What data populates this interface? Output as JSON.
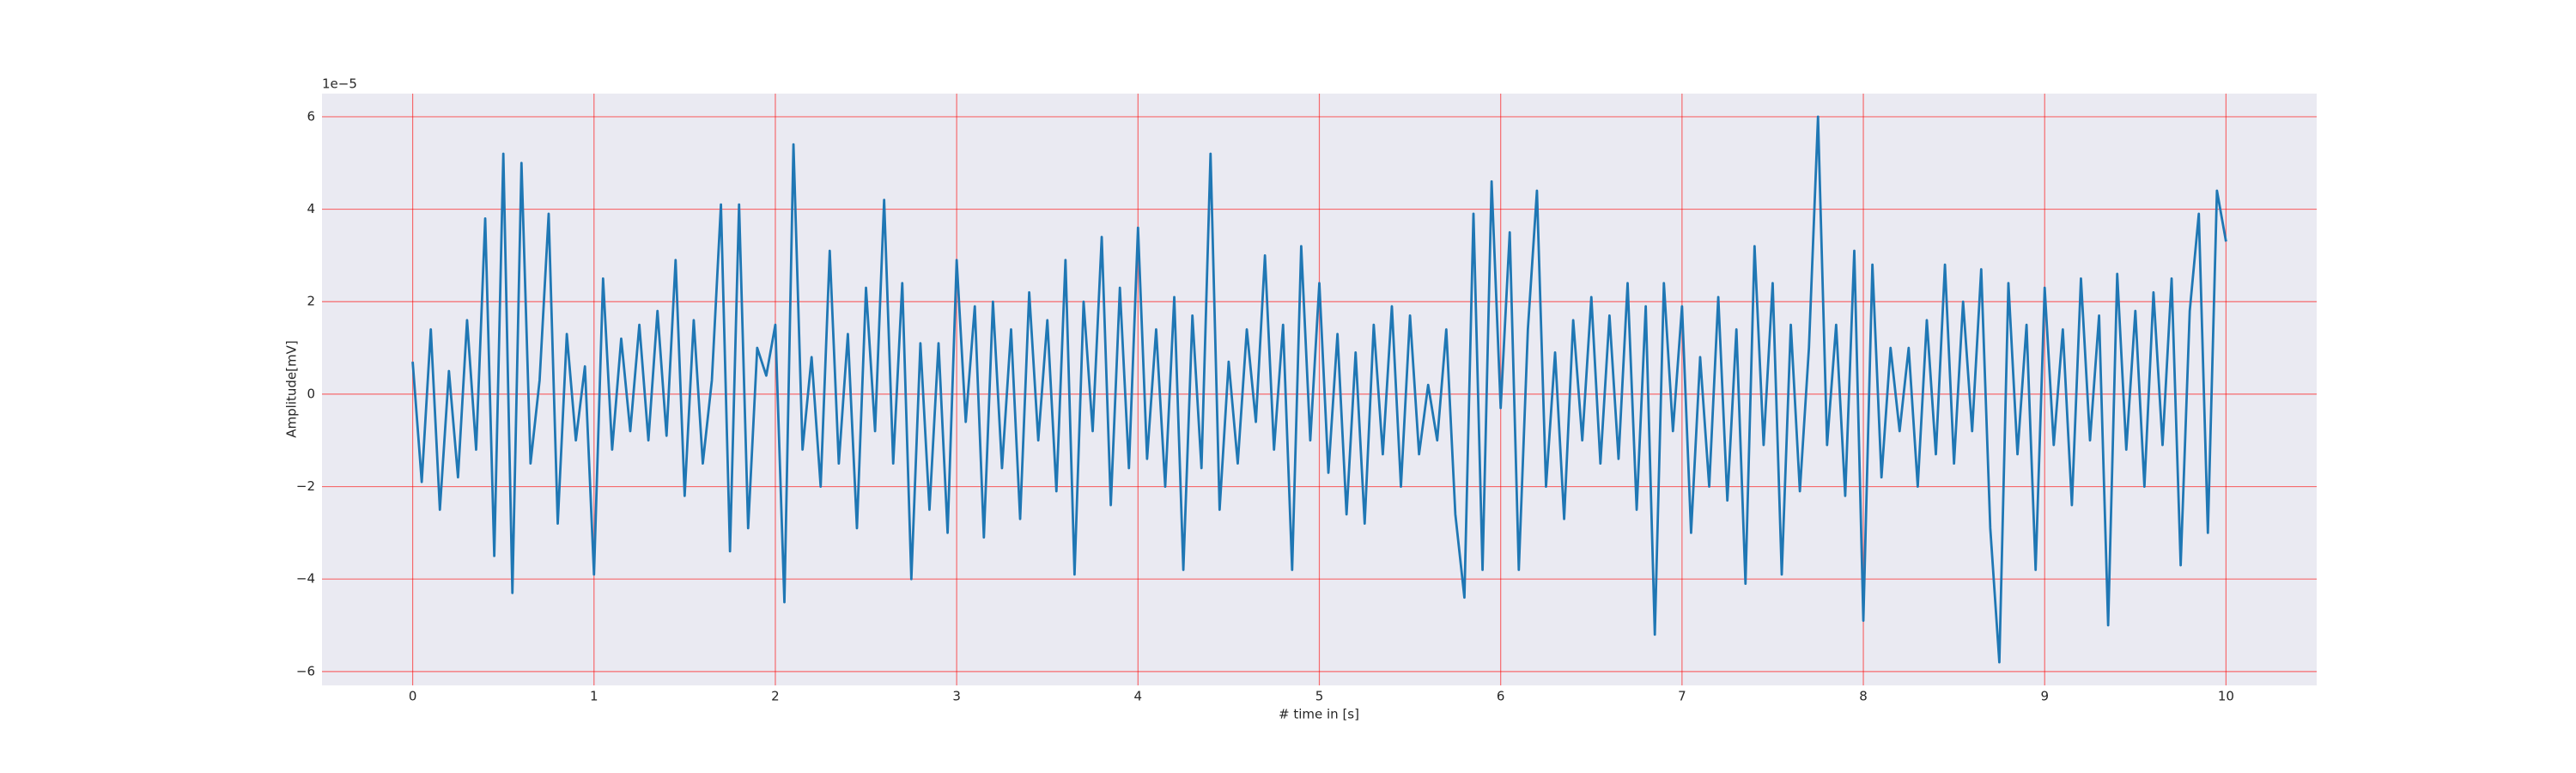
{
  "chart_data": {
    "type": "line",
    "x_label": "# time in [s]",
    "y_label": "Amplitude[mV]",
    "y_offset_label": "1e−5",
    "x": [
      0,
      0.05,
      0.1,
      0.15,
      0.2,
      0.25,
      0.3,
      0.35,
      0.4,
      0.45,
      0.5,
      0.55,
      0.6,
      0.65,
      0.7,
      0.75,
      0.8,
      0.85,
      0.9,
      0.95,
      1,
      1.05,
      1.1,
      1.15,
      1.2,
      1.25,
      1.3,
      1.35,
      1.4,
      1.45,
      1.5,
      1.55,
      1.6,
      1.65,
      1.7,
      1.75,
      1.8,
      1.85,
      1.9,
      1.95,
      2,
      2.05,
      2.1,
      2.15,
      2.2,
      2.25,
      2.3,
      2.35,
      2.4,
      2.45,
      2.5,
      2.55,
      2.6,
      2.65,
      2.7,
      2.75,
      2.8,
      2.85,
      2.9,
      2.95,
      3,
      3.05,
      3.1,
      3.15,
      3.2,
      3.25,
      3.3,
      3.35,
      3.4,
      3.45,
      3.5,
      3.55,
      3.6,
      3.65,
      3.7,
      3.75,
      3.8,
      3.85,
      3.9,
      3.95,
      4,
      4.05,
      4.1,
      4.15,
      4.2,
      4.25,
      4.3,
      4.35,
      4.4,
      4.45,
      4.5,
      4.55,
      4.6,
      4.65,
      4.7,
      4.75,
      4.8,
      4.85,
      4.9,
      4.95,
      5,
      5.05,
      5.1,
      5.15,
      5.2,
      5.25,
      5.3,
      5.35,
      5.4,
      5.45,
      5.5,
      5.55,
      5.6,
      5.65,
      5.7,
      5.75,
      5.8,
      5.85,
      5.9,
      5.95,
      6,
      6.05,
      6.1,
      6.15,
      6.2,
      6.25,
      6.3,
      6.35,
      6.4,
      6.45,
      6.5,
      6.55,
      6.6,
      6.65,
      6.7,
      6.75,
      6.8,
      6.85,
      6.9,
      6.95,
      7,
      7.05,
      7.1,
      7.15,
      7.2,
      7.25,
      7.3,
      7.35,
      7.4,
      7.45,
      7.5,
      7.55,
      7.6,
      7.65,
      7.7,
      7.75,
      7.8,
      7.85,
      7.9,
      7.95,
      8,
      8.05,
      8.1,
      8.15,
      8.2,
      8.25,
      8.3,
      8.35,
      8.4,
      8.45,
      8.5,
      8.55,
      8.6,
      8.65,
      8.7,
      8.75,
      8.8,
      8.85,
      8.9,
      8.95,
      9,
      9.05,
      9.1,
      9.15,
      9.2,
      9.25,
      9.3,
      9.35,
      9.4,
      9.45,
      9.5,
      9.55,
      9.6,
      9.65,
      9.7,
      9.75,
      9.8,
      9.85,
      9.9,
      9.95,
      10
    ],
    "series": [
      {
        "color": "#1f77b4",
        "values": [
          0.7,
          -1.9,
          1.4,
          -2.5,
          0.5,
          -1.8,
          1.6,
          -1.2,
          3.8,
          -3.5,
          5.2,
          -4.3,
          5.0,
          -1.5,
          0.3,
          3.9,
          -2.8,
          1.3,
          -1.0,
          0.6,
          -3.9,
          2.5,
          -1.2,
          1.2,
          -0.8,
          1.5,
          -1.0,
          1.8,
          -0.9,
          2.9,
          -2.2,
          1.6,
          -1.5,
          0.3,
          4.1,
          -3.4,
          4.1,
          -2.9,
          1.0,
          0.4,
          1.5,
          -4.5,
          5.4,
          -1.2,
          0.8,
          -2.0,
          3.1,
          -1.5,
          1.3,
          -2.9,
          2.3,
          -0.8,
          4.2,
          -1.5,
          2.4,
          -4.0,
          1.1,
          -2.5,
          1.1,
          -3.0,
          2.9,
          -0.6,
          1.9,
          -3.1,
          2.0,
          -1.6,
          1.4,
          -2.7,
          2.2,
          -1.0,
          1.6,
          -2.1,
          2.9,
          -3.9,
          2.0,
          -0.8,
          3.4,
          -2.4,
          2.3,
          -1.6,
          3.6,
          -1.4,
          1.4,
          -2.0,
          2.1,
          -3.8,
          1.7,
          -1.6,
          5.2,
          -2.5,
          0.7,
          -1.5,
          1.4,
          -0.6,
          3.0,
          -1.2,
          1.5,
          -3.8,
          3.2,
          -1.0,
          2.4,
          -1.7,
          1.3,
          -2.6,
          0.9,
          -2.8,
          1.5,
          -1.3,
          1.9,
          -2.0,
          1.7,
          -1.3,
          0.2,
          -1.0,
          1.4,
          -2.6,
          -4.4,
          3.9,
          -3.8,
          4.6,
          -0.3,
          3.5,
          -3.8,
          1.4,
          4.4,
          -2.0,
          0.9,
          -2.7,
          1.6,
          -1.0,
          2.1,
          -1.5,
          1.7,
          -1.4,
          2.4,
          -2.5,
          1.9,
          -5.2,
          2.4,
          -0.8,
          1.9,
          -3.0,
          0.8,
          -2.0,
          2.1,
          -2.3,
          1.4,
          -4.1,
          3.2,
          -1.1,
          2.4,
          -3.9,
          1.5,
          -2.1,
          1.0,
          6.0,
          -1.1,
          1.5,
          -2.2,
          3.1,
          -4.9,
          2.8,
          -1.8,
          1.0,
          -0.8,
          1.0,
          -2.0,
          1.6,
          -1.3,
          2.8,
          -1.5,
          2.0,
          -0.8,
          2.7,
          -2.9,
          -5.8,
          2.4,
          -1.3,
          1.5,
          -3.8,
          2.3,
          -1.1,
          1.4,
          -2.4,
          2.5,
          -1.0,
          1.7,
          -5.0,
          2.6,
          -1.2,
          1.8,
          -2.0,
          2.2,
          -1.1,
          2.5,
          -3.7,
          1.8,
          3.9,
          -3.0,
          4.4,
          3.3
        ]
      }
    ],
    "xlim": [
      -0.5,
      10.5
    ],
    "ylim": [
      -6.3,
      6.5
    ],
    "xticks": [
      0,
      1,
      2,
      3,
      4,
      5,
      6,
      7,
      8,
      9,
      10
    ],
    "yticks": [
      {
        "value": -6,
        "label": "−6"
      },
      {
        "value": -4,
        "label": "−4"
      },
      {
        "value": -2,
        "label": "−2"
      },
      0,
      2,
      4,
      6
    ],
    "grid": true,
    "grid_color": "#ff0000"
  }
}
